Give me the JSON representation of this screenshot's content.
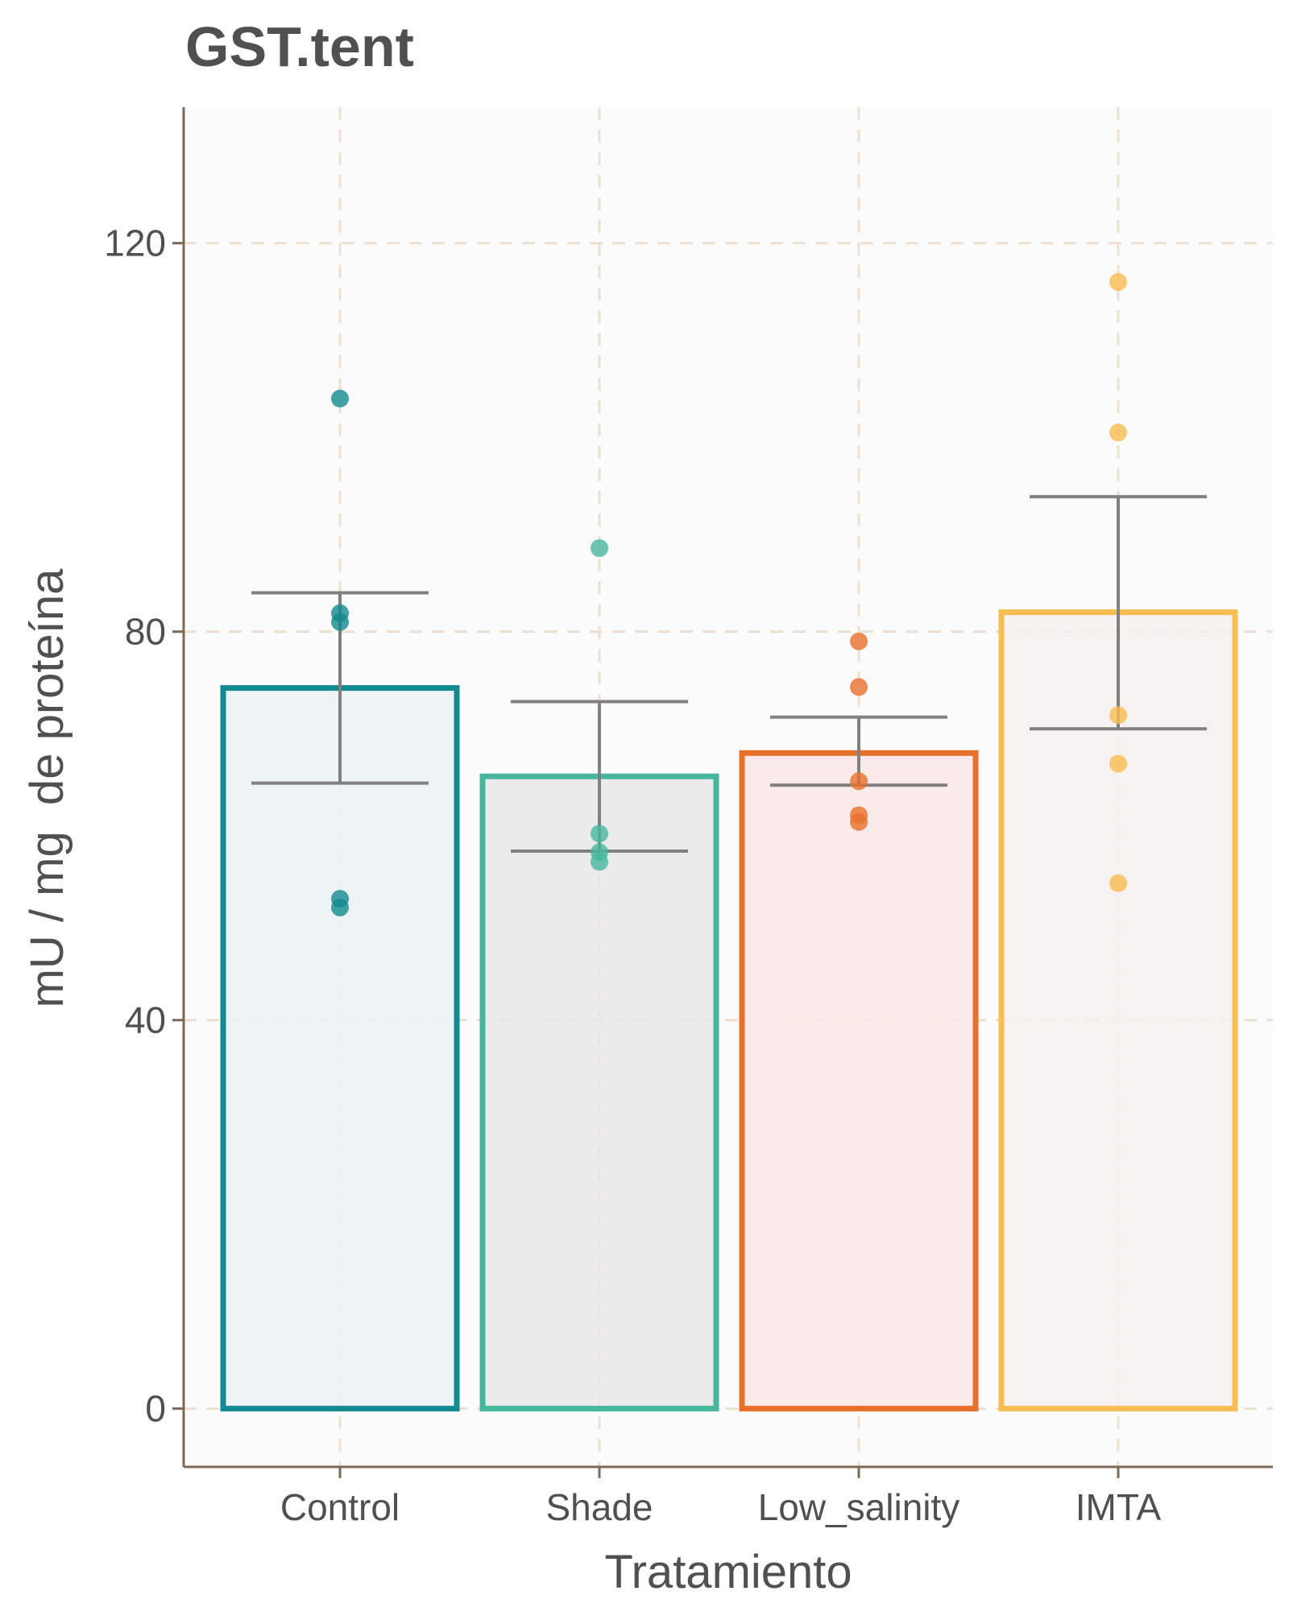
{
  "chart_data": {
    "type": "bar",
    "title": "GST.tent",
    "xlabel": "Tratamiento",
    "ylabel": "mU / mg  de proteína",
    "categories": [
      "Control",
      "Shade",
      "Low_salinity",
      "IMTA"
    ],
    "values": [
      74.2,
      65.1,
      67.5,
      82.0
    ],
    "error_bars": [
      {
        "low": 64.4,
        "high": 84.0
      },
      {
        "low": 57.4,
        "high": 72.8
      },
      {
        "low": 64.2,
        "high": 71.2
      },
      {
        "low": 70.0,
        "high": 93.9
      }
    ],
    "points": [
      [
        104.0,
        81.9,
        81.0,
        52.5,
        51.6
      ],
      [
        88.6,
        59.2,
        57.3,
        56.3
      ],
      [
        79.0,
        74.3,
        64.6,
        61.1,
        60.4
      ],
      [
        116.0,
        100.5,
        71.4,
        66.4,
        54.1
      ]
    ],
    "colors": [
      "#138a8f",
      "#46b79c",
      "#e8702a",
      "#f9bc50"
    ],
    "fills": [
      "#ebf2f4",
      "#e7e8e9",
      "#f9e8e6",
      "#f5f0ec"
    ],
    "yticks": [
      0,
      40,
      80,
      120
    ],
    "ylim": [
      -6,
      134
    ],
    "grid": true,
    "legend": "none"
  }
}
